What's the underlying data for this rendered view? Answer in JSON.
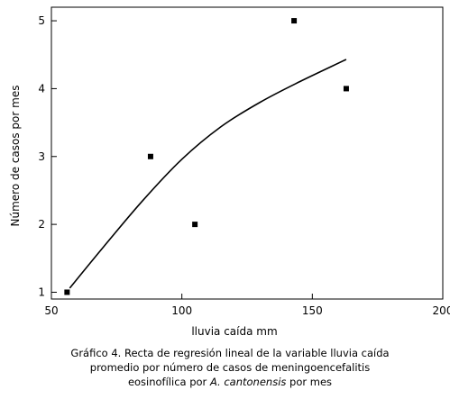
{
  "chart_data": {
    "type": "scatter",
    "title": "",
    "xlabel": "lluvia caída mm",
    "ylabel": "Número de casos por mes",
    "xlim": [
      50,
      200
    ],
    "ylim": [
      0.9,
      5.2
    ],
    "xticks": [
      "50",
      "100",
      "150",
      "200"
    ],
    "yticks": [
      "1",
      "2",
      "3",
      "4",
      "5"
    ],
    "grid": false,
    "points": [
      {
        "x": 56,
        "y": 1
      },
      {
        "x": 88,
        "y": 3
      },
      {
        "x": 105,
        "y": 2
      },
      {
        "x": 143,
        "y": 5
      },
      {
        "x": 163,
        "y": 4
      }
    ],
    "fit_curve": [
      {
        "x": 57,
        "y": 1.06
      },
      {
        "x": 70,
        "y": 1.67
      },
      {
        "x": 85,
        "y": 2.35
      },
      {
        "x": 100,
        "y": 2.96
      },
      {
        "x": 115,
        "y": 3.44
      },
      {
        "x": 130,
        "y": 3.8
      },
      {
        "x": 145,
        "y": 4.1
      },
      {
        "x": 163,
        "y": 4.43
      }
    ]
  },
  "caption": {
    "line1": "Gráfico 4. Recta de regresión lineal de la variable lluvia caída",
    "line2": "promedio por número de casos de meningoencefalitis",
    "line3_prefix": "eosinofílica por ",
    "line3_italic": "A. cantonensis",
    "line3_suffix": " por mes"
  }
}
